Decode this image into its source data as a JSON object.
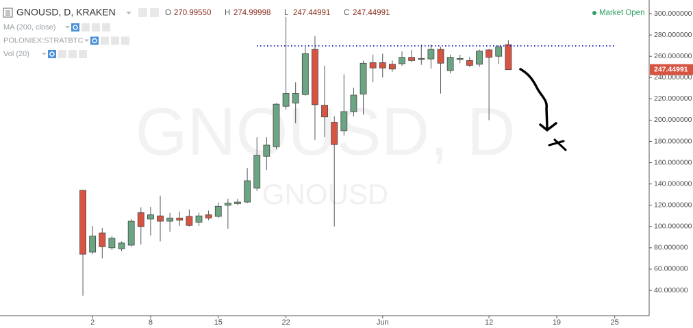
{
  "chart_data": {
    "type": "candlestick",
    "header": {
      "symbol": "GNOUSD, D, KRAKEN",
      "ohlc": [
        {
          "key": "O",
          "text": "270.99550"
        },
        {
          "key": "H",
          "text": "274.99998"
        },
        {
          "key": "L",
          "text": "247.44991"
        },
        {
          "key": "C",
          "text": "247.44991"
        }
      ],
      "indicators": [
        "MA (200, close)",
        "POLONIEX:STRATBTC",
        "Vol (20)"
      ],
      "status": "Market Open"
    },
    "watermark": {
      "title": "GNOUSD, D",
      "subtitle": "GNOUSD"
    },
    "categories": [
      null,
      "2",
      null,
      null,
      null,
      null,
      null,
      "8",
      null,
      null,
      null,
      null,
      null,
      null,
      "15",
      null,
      null,
      null,
      null,
      null,
      null,
      "22",
      null,
      null,
      null,
      null,
      null,
      null,
      null,
      null,
      null,
      "Jun",
      null,
      null,
      null,
      null,
      null,
      null,
      null,
      null,
      null,
      null,
      "12",
      null,
      null,
      null,
      null,
      null,
      null,
      "19",
      null,
      null,
      null,
      null,
      null,
      "25",
      null,
      null,
      null
    ],
    "open": [
      134,
      76,
      94,
      80,
      79,
      82.5,
      113,
      107,
      110,
      105,
      108,
      109.5,
      104,
      111,
      109.5,
      120,
      121.5,
      123,
      136,
      166,
      175,
      213,
      216,
      224,
      266.5,
      214,
      198,
      190,
      208,
      224.5,
      254,
      254,
      252.5,
      253,
      259,
      257,
      257.5,
      266.5,
      246.5,
      257,
      256,
      252.5,
      266,
      260,
      270.9955,
      null,
      null,
      null,
      null,
      null,
      null,
      null,
      null,
      null,
      null,
      null,
      null,
      null,
      null
    ],
    "high": [
      134,
      100.5,
      98.5,
      91,
      86,
      107,
      118,
      118.5,
      129,
      113,
      114,
      116,
      113,
      115,
      122.5,
      126,
      126,
      155,
      184,
      184,
      216,
      297,
      235.5,
      270.5,
      279,
      251,
      203.5,
      243,
      230.5,
      256,
      261.5,
      262.5,
      256,
      264.5,
      266,
      271,
      271,
      269,
      261.5,
      261.5,
      259.5,
      266.5,
      267,
      270.5,
      274.99998,
      null,
      null,
      null,
      null,
      null,
      null,
      null,
      null,
      null,
      null,
      null,
      null,
      null,
      null
    ],
    "low": [
      35,
      74,
      70,
      78,
      77,
      81,
      83,
      91.5,
      86,
      95,
      100.5,
      100,
      100.5,
      106,
      108,
      98,
      120,
      122,
      133.5,
      153,
      172.5,
      210,
      197,
      223,
      181.5,
      184,
      100,
      185.5,
      203.5,
      205,
      235.5,
      240,
      245.5,
      251,
      254.5,
      252,
      248.5,
      225,
      244,
      253.5,
      250,
      250,
      200,
      252.5,
      247.44991,
      null,
      null,
      null,
      null,
      null,
      null,
      null,
      null,
      null,
      null,
      null,
      null,
      null,
      null
    ],
    "close": [
      74,
      91,
      81,
      89,
      84.5,
      105,
      100,
      111,
      105,
      108,
      106,
      101,
      110,
      108,
      119,
      122,
      123,
      143,
      167,
      176.5,
      215,
      225,
      225,
      262.5,
      214.5,
      203,
      177,
      208,
      223.5,
      253.5,
      249,
      249,
      248,
      259,
      256,
      258,
      266.5,
      253.5,
      259,
      258,
      251.5,
      265,
      259,
      269,
      247.44991,
      null,
      null,
      null,
      null,
      null,
      null,
      null,
      null,
      null,
      null,
      null,
      null,
      null,
      null
    ],
    "up_color": "#6ba583",
    "down_color": "#d75442",
    "ylim": [
      16.2,
      312.9
    ],
    "yticks": [
      {
        "value": 40,
        "label": "40.000000"
      },
      {
        "value": 60,
        "label": "60.000000"
      },
      {
        "value": 80,
        "label": "80.000000"
      },
      {
        "value": 100,
        "label": "100.000000"
      },
      {
        "value": 120,
        "label": "120.000000"
      },
      {
        "value": 140,
        "label": "140.000000"
      },
      {
        "value": 160,
        "label": "160.000000"
      },
      {
        "value": 180,
        "label": "180.000000"
      },
      {
        "value": 200,
        "label": "200.000000"
      },
      {
        "value": 220,
        "label": "220.000000"
      },
      {
        "value": 240,
        "label": "240.000000"
      },
      {
        "value": 260,
        "label": "260.000000"
      },
      {
        "value": 280,
        "label": "280.000000"
      },
      {
        "value": 300,
        "label": "300.000000"
      }
    ],
    "last_price": {
      "value": 247.44991,
      "label": "247.44991"
    },
    "grid": false
  }
}
